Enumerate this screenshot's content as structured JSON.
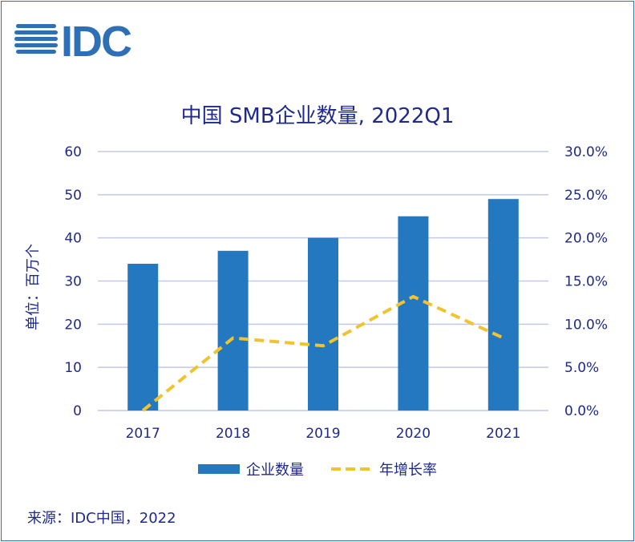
{
  "brand": {
    "logo_text": "IDC",
    "color": "#2f6fb5"
  },
  "chart_data": {
    "type": "bar+line",
    "title": "中国 SMB企业数量, 2022Q1",
    "ylabel": "单位：百万个",
    "categories": [
      "2017",
      "2018",
      "2019",
      "2020",
      "2021"
    ],
    "series": [
      {
        "name": "企业数量",
        "type": "bar",
        "axis": "left",
        "values": [
          34,
          37,
          40,
          45,
          49
        ],
        "color": "#2478c0"
      },
      {
        "name": "年增长率",
        "type": "line",
        "axis": "right",
        "style": "dashed",
        "values": [
          0.0,
          8.4,
          7.5,
          13.2,
          8.4
        ],
        "color": "#f0c430"
      }
    ],
    "y_left": {
      "min": 0,
      "max": 60,
      "ticks": [
        "0",
        "10",
        "20",
        "30",
        "40",
        "50",
        "60"
      ]
    },
    "y_right": {
      "min": 0,
      "max": 30,
      "ticks": [
        "0.0%",
        "5.0%",
        "10.0%",
        "15.0%",
        "20.0%",
        "25.0%",
        "30.0%"
      ]
    },
    "grid": true,
    "legend_position": "bottom"
  },
  "footer": {
    "source": "来源：IDC中国，2022"
  }
}
